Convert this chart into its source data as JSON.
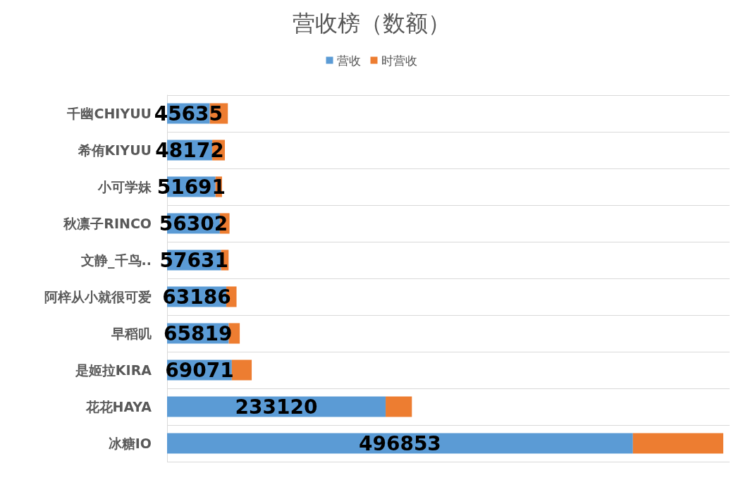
{
  "chart_data": {
    "type": "bar",
    "title": "营收榜（数额）",
    "orientation": "horizontal",
    "stacked": true,
    "legend": "top",
    "grid": "y",
    "categories": [
      "千幽CHIYUU",
      "希侑KIYUU",
      "小可学妹",
      "秋凛子RINCO",
      "文静_千鸟..",
      "阿梓从小就很可爱",
      "早稻叽",
      "是姬拉KIRA",
      "花花HAYA",
      "冰糖IO"
    ],
    "series": [
      {
        "name": "营收",
        "color": "#5b9bd5",
        "values": [
          45635,
          48172,
          51691,
          56302,
          57631,
          63186,
          65819,
          69071,
          233120,
          496853
        ],
        "value_labels": [
          "45635",
          "48172",
          "51691",
          "56302",
          "57631",
          "63186",
          "65819",
          "69071",
          "233120",
          "496853"
        ]
      },
      {
        "name": "时营收",
        "color": "#ed7d31",
        "values": [
          19200,
          13500,
          6900,
          10300,
          8000,
          10900,
          11700,
          21200,
          28000,
          96400
        ]
      }
    ]
  }
}
